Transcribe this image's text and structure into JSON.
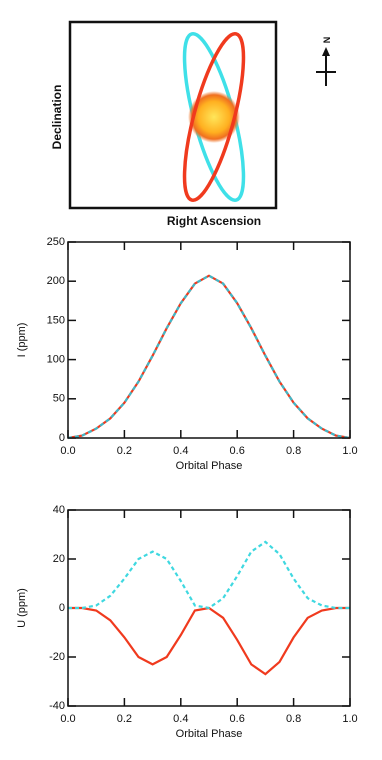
{
  "chart_data": [
    {
      "type": "diagram",
      "xlabel": "Right Ascension",
      "ylabel": "Declination",
      "annotation": "N"
    },
    {
      "type": "line",
      "xlabel": "Orbital Phase",
      "ylabel": "I (ppm)",
      "x": [
        0,
        0.05,
        0.1,
        0.15,
        0.2,
        0.25,
        0.3,
        0.35,
        0.4,
        0.45,
        0.5,
        0.55,
        0.6,
        0.65,
        0.7,
        0.75,
        0.8,
        0.85,
        0.9,
        0.95,
        1.0
      ],
      "series": [
        {
          "color": "#f03a1e",
          "style": "solid",
          "values": [
            0,
            3,
            12,
            25,
            45,
            72,
            105,
            140,
            172,
            197,
            207,
            197,
            172,
            140,
            105,
            72,
            45,
            25,
            12,
            3,
            0
          ]
        },
        {
          "color": "#3fb8c8",
          "style": "dashed",
          "values": [
            0,
            3,
            12,
            25,
            45,
            72,
            105,
            140,
            172,
            197,
            207,
            197,
            172,
            140,
            105,
            72,
            45,
            25,
            12,
            3,
            0
          ]
        }
      ],
      "xlim": [
        0,
        1.0
      ],
      "xticks": [
        {
          "value": 0,
          "label": "0.0"
        },
        0.2,
        0.4,
        0.6,
        0.8,
        {
          "value": 1.0,
          "label": "1.0"
        }
      ],
      "ylim": [
        0,
        250
      ],
      "yticks": [
        0,
        50,
        100,
        150,
        200,
        250
      ]
    },
    {
      "type": "line",
      "xlabel": "Orbital Phase",
      "ylabel": "U (ppm)",
      "x": [
        0,
        0.05,
        0.1,
        0.15,
        0.2,
        0.25,
        0.3,
        0.35,
        0.4,
        0.45,
        0.5,
        0.55,
        0.6,
        0.65,
        0.7,
        0.75,
        0.8,
        0.85,
        0.9,
        0.95,
        1.0
      ],
      "series": [
        {
          "color": "#f03a1e",
          "style": "solid",
          "values": [
            0,
            0,
            -1,
            -5,
            -12,
            -20,
            -23,
            -20,
            -11,
            -1,
            0,
            -4,
            -13,
            -23,
            -27,
            -22,
            -12,
            -4,
            -1,
            0,
            0
          ]
        },
        {
          "color": "#3fd8e0",
          "style": "dashed",
          "values": [
            0,
            0,
            1,
            5,
            12,
            20,
            23,
            20,
            11,
            1,
            0,
            4,
            13,
            23,
            27,
            22,
            12,
            4,
            1,
            0,
            0
          ]
        }
      ],
      "xlim": [
        0,
        1.0
      ],
      "xticks": [
        {
          "value": 0,
          "label": "0.0"
        },
        0.2,
        0.4,
        0.6,
        0.8,
        {
          "value": 1.0,
          "label": "1.0"
        }
      ],
      "ylim": [
        -40,
        40
      ],
      "yticks": [
        -40,
        -20,
        0,
        20,
        40
      ]
    }
  ]
}
